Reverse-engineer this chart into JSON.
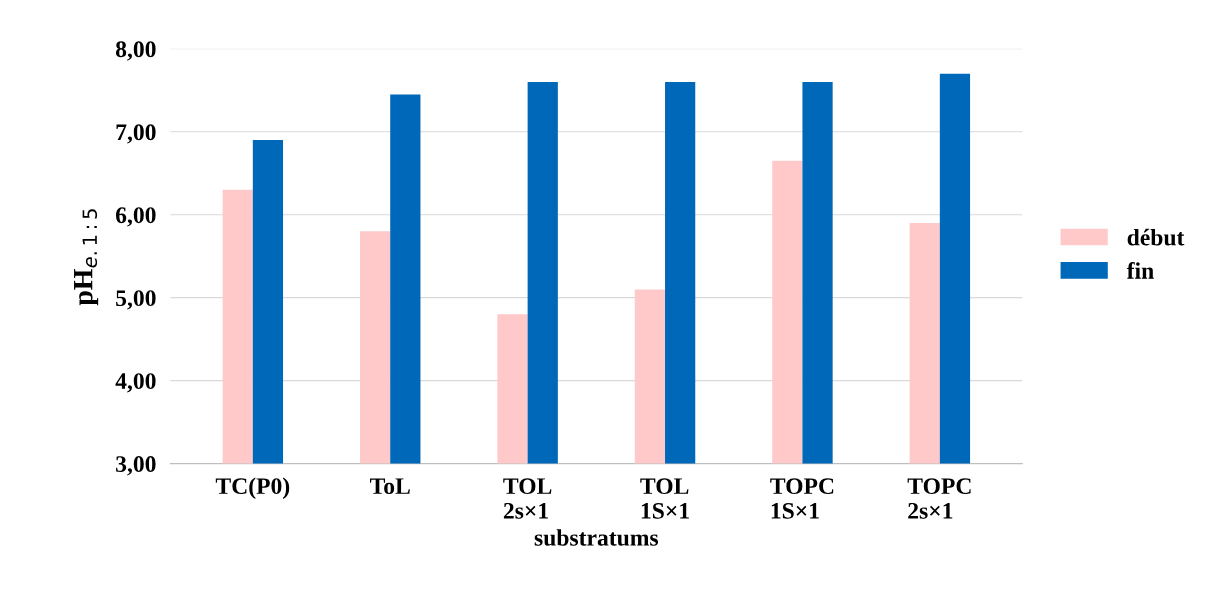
{
  "chart_data": {
    "type": "bar",
    "xlabel": "substratums",
    "ylabel": "pH$_{e.1:5}$",
    "categories": [
      "TC(P0)",
      "ToL",
      "TOL\n2s×1",
      "TOL\n1S×1",
      "TOPC\n1S×1",
      "TOPC\n2s×1"
    ],
    "series": [
      {
        "name": "début",
        "color": "#ffc9c9",
        "values": [
          6.3,
          5.8,
          4.8,
          5.1,
          6.65,
          5.9
        ]
      },
      {
        "name": "fin",
        "color": "#0068b8",
        "values": [
          6.9,
          7.45,
          7.6,
          7.6,
          7.6,
          7.7
        ]
      }
    ],
    "ylim": [
      3,
      8
    ],
    "yticks": [
      {
        "value": 3,
        "label": "3,00"
      },
      {
        "value": 4,
        "label": "4,00"
      },
      {
        "value": 5,
        "label": "5,00"
      },
      {
        "value": 6,
        "label": "6,00"
      },
      {
        "value": 7,
        "label": "7,00"
      },
      {
        "value": 8,
        "label": "8,00"
      }
    ],
    "grid": "y",
    "legend": "right"
  }
}
